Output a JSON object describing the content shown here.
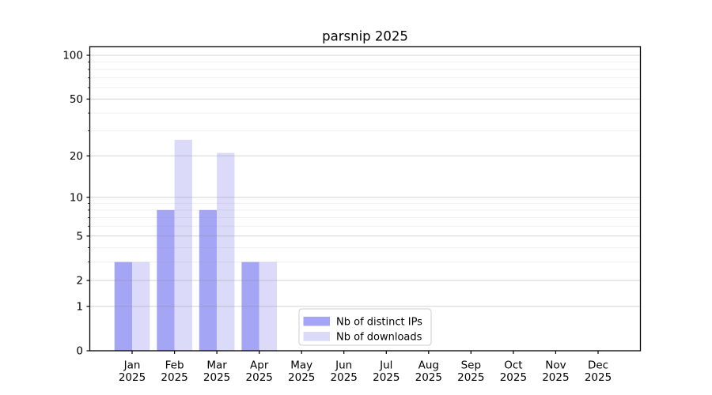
{
  "chart_data": {
    "type": "bar",
    "title": "parsnip 2025",
    "categories": [
      "Jan 2025",
      "Feb 2025",
      "Mar 2025",
      "Apr 2025",
      "May 2025",
      "Jun 2025",
      "Jul 2025",
      "Aug 2025",
      "Sep 2025",
      "Oct 2025",
      "Nov 2025",
      "Dec 2025"
    ],
    "series": [
      {
        "name": "Nb of distinct IPs",
        "color": "#a5a5f5",
        "values": [
          3,
          8,
          8,
          3,
          0,
          0,
          0,
          0,
          0,
          0,
          0,
          0
        ]
      },
      {
        "name": "Nb of downloads",
        "color": "#dbdbf9",
        "values": [
          3,
          26,
          21,
          3,
          0,
          0,
          0,
          0,
          0,
          0,
          0,
          0
        ]
      }
    ],
    "xlabel": "",
    "ylabel": "",
    "yaxis": {
      "scale": "log1p",
      "ticks": [
        0,
        1,
        2,
        5,
        10,
        20,
        50,
        100
      ],
      "ylim": [
        0,
        100
      ]
    },
    "grid": true,
    "legend": {
      "position": "lower center",
      "border_color": "#cccccc",
      "background": "#ffffff"
    },
    "colors": {
      "spine": "#000000",
      "major_grid": "#d6d6d6",
      "minor_grid": "#ececec",
      "background": "#ffffff"
    }
  }
}
